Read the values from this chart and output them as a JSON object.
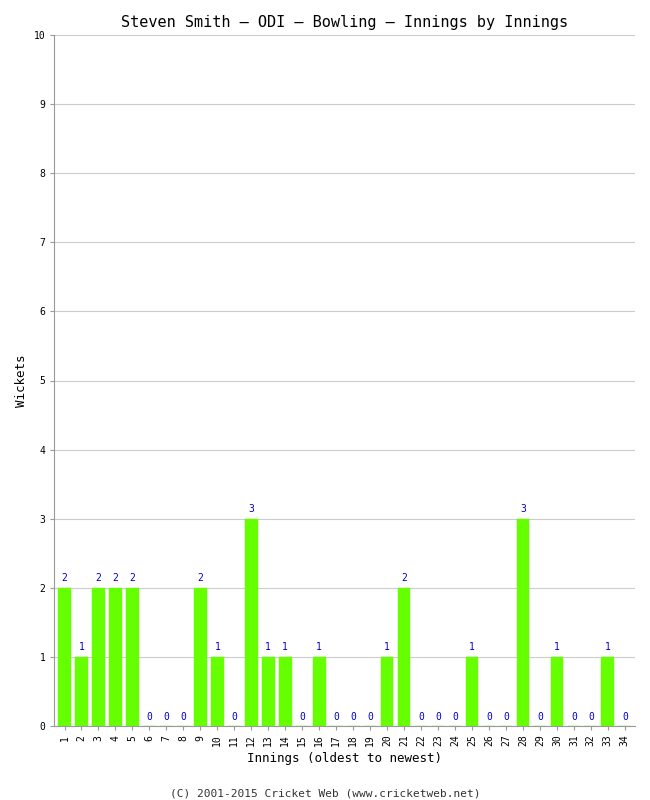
{
  "title": "Steven Smith – ODI – Bowling – Innings by Innings",
  "xlabel": "Innings (oldest to newest)",
  "ylabel": "Wickets",
  "ylim": [
    0,
    10
  ],
  "yticks": [
    0,
    1,
    2,
    3,
    4,
    5,
    6,
    7,
    8,
    9,
    10
  ],
  "innings": [
    1,
    2,
    3,
    4,
    5,
    6,
    7,
    8,
    9,
    10,
    11,
    12,
    13,
    14,
    15,
    16,
    17,
    18,
    19,
    20,
    21,
    22,
    23,
    24,
    25,
    26,
    27,
    28,
    29,
    30,
    31,
    32,
    33,
    34
  ],
  "wickets": [
    2,
    1,
    2,
    2,
    2,
    0,
    0,
    0,
    2,
    1,
    0,
    3,
    1,
    1,
    0,
    1,
    0,
    0,
    0,
    1,
    2,
    0,
    0,
    0,
    1,
    0,
    0,
    3,
    0,
    1,
    0,
    0,
    1,
    0
  ],
  "bar_color": "#66ff00",
  "bar_edge_color": "#66ff00",
  "label_color": "#0000cc",
  "background_color": "#ffffff",
  "grid_color": "#cccccc",
  "footer_text": "(C) 2001-2015 Cricket Web (www.cricketweb.net)",
  "title_fontsize": 11,
  "axis_label_fontsize": 9,
  "tick_fontsize": 7,
  "value_label_fontsize": 7,
  "footer_fontsize": 8
}
